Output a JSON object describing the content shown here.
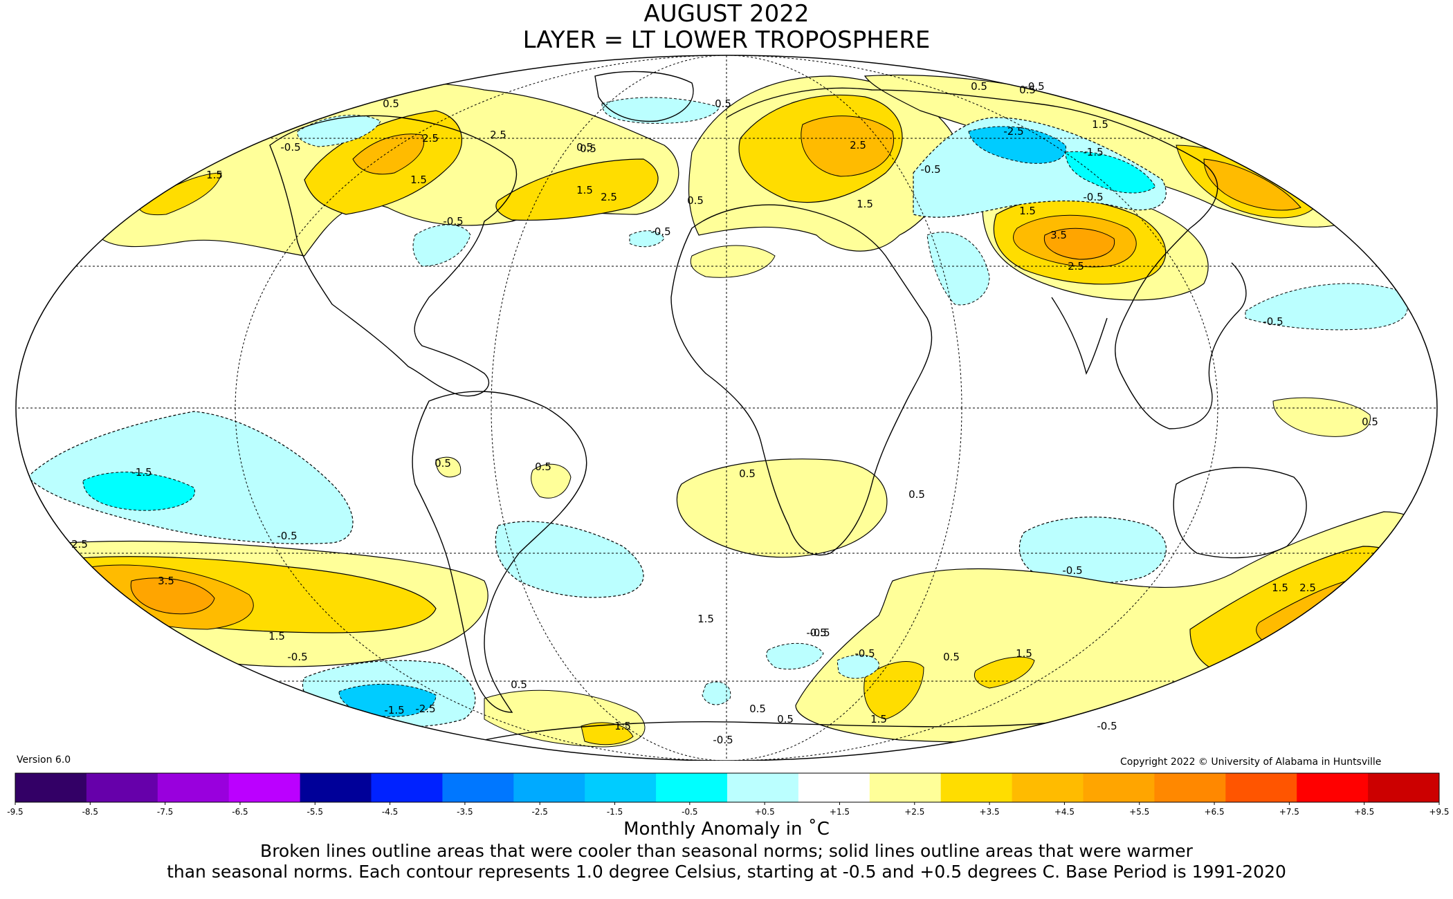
{
  "title": "AUGUST 2022",
  "subtitle": "LAYER = LT LOWER TROPOSPHERE",
  "version": "Version 6.0",
  "copyright": "Copyright 2022 © University of Alabama in Huntsville",
  "colorbar": {
    "ticks": [
      "-9.5",
      "-8.5",
      "-7.5",
      "-6.5",
      "-5.5",
      "-4.5",
      "-3.5",
      "-2.5",
      "-1.5",
      "-0.5",
      "+0.5",
      "+1.5",
      "+2.5",
      "+3.5",
      "+4.5",
      "+5.5",
      "+6.5",
      "+7.5",
      "+8.5",
      "+9.5"
    ],
    "colors": [
      "#3b005a",
      "#6600aa",
      "#9900dd",
      "#bb00ff",
      "#000099",
      "#0033ff",
      "#0066ff",
      "#0099ff",
      "#00ccff",
      "#00ffff",
      "#bbffff",
      "#ffffff",
      "#ffff99",
      "#ffdd00",
      "#ffbb00",
      "#ffa500",
      "#ff8800",
      "#ff6600",
      "#ff3300",
      "#ff0000",
      "#dd0000",
      "#bb0000"
    ],
    "bin_colors": [
      "#330066",
      "#6600aa",
      "#9900dd",
      "#bb00ff",
      "#000099",
      "#0022ff",
      "#0077ff",
      "#00aaff",
      "#00ccff",
      "#00ffff",
      "#bbffff",
      "#ffffff",
      "#ffff99",
      "#ffdd00",
      "#ffbb00",
      "#ffa500",
      "#ff8800",
      "#ff5500",
      "#ff0000",
      "#cc0000"
    ]
  },
  "units_label": "Monthly Anomaly in ˚C",
  "caption_line1": "Broken lines outline areas that were cooler than seasonal norms; solid lines outline areas that were warmer",
  "caption_line2": "than seasonal norms. Each contour represents 1.0 degree Celsius, starting at -0.5 and +0.5 degrees C. Base Period is 1991-2020",
  "contour_labels": [
    {
      "text": "0.5",
      "class": "pos"
    },
    {
      "text": "2.5",
      "class": "pos"
    },
    {
      "text": "1.5",
      "class": "pos"
    },
    {
      "text": "2.5",
      "class": "pos"
    },
    {
      "text": "1.5",
      "class": "pos"
    },
    {
      "text": "0.5",
      "class": "pos"
    },
    {
      "text": "-0.5",
      "class": "neg"
    },
    {
      "text": "0.5",
      "class": "pos"
    },
    {
      "text": "-0.5",
      "class": "neg"
    },
    {
      "text": "1.5",
      "class": "pos"
    },
    {
      "text": "-0.5",
      "class": "neg"
    },
    {
      "text": "2.5",
      "class": "pos"
    },
    {
      "text": "1.5",
      "class": "pos"
    },
    {
      "text": "0.5",
      "class": "pos"
    },
    {
      "text": "-2.5",
      "class": "neg"
    },
    {
      "text": "-1.5",
      "class": "neg"
    },
    {
      "text": "1.5",
      "class": "pos"
    },
    {
      "text": "-0.5",
      "class": "neg"
    },
    {
      "text": "2.5",
      "class": "pos"
    },
    {
      "text": "-0.5",
      "class": "neg"
    },
    {
      "text": "1.5",
      "class": "pos"
    },
    {
      "text": "3.5",
      "class": "pos"
    },
    {
      "text": "2.5",
      "class": "pos"
    },
    {
      "text": "-0.5",
      "class": "neg"
    },
    {
      "text": "-1.5",
      "class": "neg"
    },
    {
      "text": "0.5",
      "class": "pos"
    },
    {
      "text": "-0.5",
      "class": "neg"
    },
    {
      "text": "2.5",
      "class": "pos"
    },
    {
      "text": "3.5",
      "class": "pos"
    },
    {
      "text": "1.5",
      "class": "pos"
    },
    {
      "text": "-0.5",
      "class": "neg"
    },
    {
      "text": "-1.5",
      "class": "neg"
    },
    {
      "text": "-2.5",
      "class": "neg"
    },
    {
      "text": "0.5",
      "class": "pos"
    },
    {
      "text": "-0.5",
      "class": "neg"
    },
    {
      "text": "0.5",
      "class": "pos"
    },
    {
      "text": "0.5",
      "class": "pos"
    },
    {
      "text": "0.5",
      "class": "pos"
    },
    {
      "text": "0.5",
      "class": "pos"
    },
    {
      "text": "-0.5",
      "class": "neg"
    },
    {
      "text": "0.5",
      "class": "pos"
    },
    {
      "text": "0.5",
      "class": "pos"
    },
    {
      "text": "1.5",
      "class": "pos"
    },
    {
      "text": "-0.5",
      "class": "neg"
    },
    {
      "text": "-0.5",
      "class": "neg"
    },
    {
      "text": "-0.5",
      "class": "neg"
    },
    {
      "text": "0.5",
      "class": "pos"
    },
    {
      "text": "1.5",
      "class": "pos"
    },
    {
      "text": "0.5",
      "class": "pos"
    },
    {
      "text": "-0.5",
      "class": "neg"
    },
    {
      "text": "1.5",
      "class": "pos"
    },
    {
      "text": "2.5",
      "class": "pos"
    },
    {
      "text": "-0.5",
      "class": "neg"
    },
    {
      "text": "1.5",
      "class": "pos"
    },
    {
      "text": "0.5",
      "class": "pos"
    },
    {
      "text": "1.5",
      "class": "pos"
    },
    {
      "text": "0.5",
      "class": "pos"
    }
  ]
}
